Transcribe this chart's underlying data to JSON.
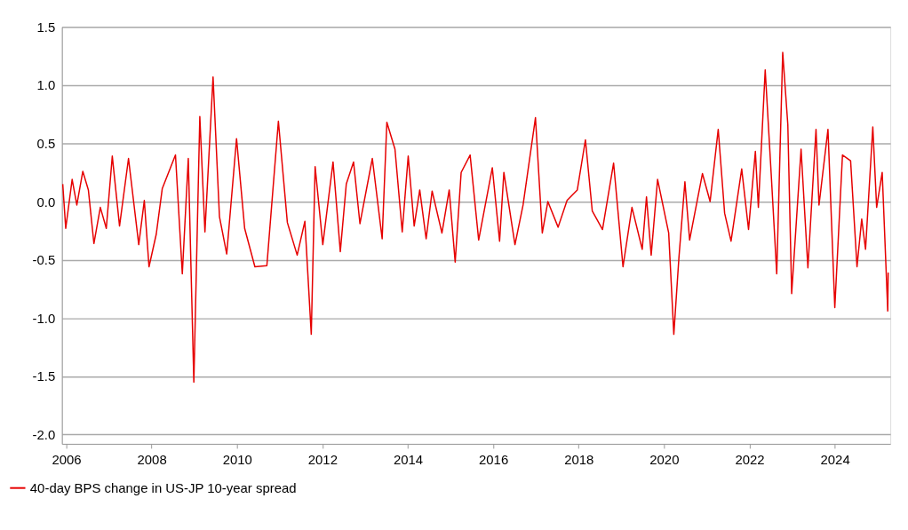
{
  "chart_data": {
    "type": "line",
    "xlim": [
      2005.9,
      2025.3
    ],
    "ylim": [
      -2.08,
      1.5
    ],
    "xticks": [
      2006,
      2008,
      2010,
      2012,
      2014,
      2016,
      2018,
      2020,
      2022,
      2024
    ],
    "yticks": [
      {
        "value": -2.0,
        "label": "-2.0"
      },
      {
        "value": -1.5,
        "label": "-1.5"
      },
      {
        "value": -1.0,
        "label": "-1.0"
      },
      {
        "value": -0.5,
        "label": "-0.5"
      },
      {
        "value": 0.0,
        "label": "0.0"
      },
      {
        "value": 0.5,
        "label": "0.5"
      },
      {
        "value": 1.0,
        "label": "1.0"
      },
      {
        "value": 1.5,
        "label": "1.5"
      }
    ],
    "grid": "y",
    "legend": "bottom left",
    "line_style": "solid",
    "marker": "none",
    "x": [
      2005.92,
      2005.99,
      2006.14,
      2006.25,
      2006.39,
      2006.52,
      2006.65,
      2006.8,
      2006.94,
      2007.08,
      2007.25,
      2007.46,
      2007.7,
      2007.83,
      2007.94,
      2008.11,
      2008.25,
      2008.56,
      2008.72,
      2008.86,
      2008.99,
      2009.13,
      2009.25,
      2009.44,
      2009.59,
      2009.76,
      2009.99,
      2010.18,
      2010.42,
      2010.7,
      2010.97,
      2011.18,
      2011.41,
      2011.59,
      2011.74,
      2011.83,
      2012.01,
      2012.25,
      2012.42,
      2012.56,
      2012.73,
      2012.88,
      2013.17,
      2013.4,
      2013.51,
      2013.7,
      2013.87,
      2014.01,
      2014.15,
      2014.28,
      2014.43,
      2014.57,
      2014.8,
      2014.97,
      2015.11,
      2015.25,
      2015.46,
      2015.66,
      2015.98,
      2016.15,
      2016.25,
      2016.51,
      2016.7,
      2016.99,
      2017.15,
      2017.28,
      2017.52,
      2017.73,
      2017.97,
      2018.16,
      2018.32,
      2018.56,
      2018.82,
      2019.04,
      2019.25,
      2019.49,
      2019.59,
      2019.7,
      2019.85,
      2020.11,
      2020.23,
      2020.35,
      2020.49,
      2020.6,
      2020.9,
      2021.08,
      2021.27,
      2021.42,
      2021.57,
      2021.82,
      2021.98,
      2022.14,
      2022.21,
      2022.37,
      2022.51,
      2022.64,
      2022.78,
      2022.9,
      2022.99,
      2023.21,
      2023.37,
      2023.56,
      2023.63,
      2023.84,
      2024.0,
      2024.18,
      2024.37,
      2024.52,
      2024.63,
      2024.72,
      2024.89,
      2024.98,
      2025.11,
      2025.24,
      2025.25
    ],
    "series": [
      {
        "name": "40-day BPS change in US-JP 10-year spread",
        "color": "#e60000",
        "values": [
          0.15,
          -0.23,
          0.19,
          -0.03,
          0.26,
          0.1,
          -0.36,
          -0.05,
          -0.23,
          0.39,
          -0.21,
          0.37,
          -0.37,
          0.01,
          -0.56,
          -0.28,
          0.11,
          0.4,
          -0.62,
          0.37,
          -1.55,
          0.73,
          -0.26,
          1.07,
          -0.13,
          -0.45,
          0.54,
          -0.23,
          -0.56,
          -0.55,
          0.69,
          -0.18,
          -0.46,
          -0.17,
          -1.14,
          0.3,
          -0.37,
          0.34,
          -0.43,
          0.15,
          0.34,
          -0.19,
          0.37,
          -0.32,
          0.68,
          0.45,
          -0.26,
          0.39,
          -0.21,
          0.1,
          -0.32,
          0.09,
          -0.27,
          0.1,
          -0.52,
          0.25,
          0.4,
          -0.33,
          0.29,
          -0.34,
          0.25,
          -0.37,
          -0.03,
          0.72,
          -0.27,
          0.0,
          -0.22,
          0.01,
          0.1,
          0.53,
          -0.08,
          -0.24,
          0.33,
          -0.56,
          -0.05,
          -0.41,
          0.04,
          -0.46,
          0.19,
          -0.27,
          -1.14,
          -0.48,
          0.17,
          -0.33,
          0.24,
          0.0,
          0.62,
          -0.1,
          -0.34,
          0.28,
          -0.24,
          0.43,
          -0.05,
          1.13,
          0.24,
          -0.62,
          1.28,
          0.66,
          -0.79,
          0.45,
          -0.57,
          0.62,
          -0.03,
          0.62,
          -0.91,
          0.4,
          0.35,
          -0.56,
          -0.15,
          -0.41,
          0.64,
          -0.05,
          0.25,
          -0.94,
          -0.61
        ]
      }
    ]
  }
}
